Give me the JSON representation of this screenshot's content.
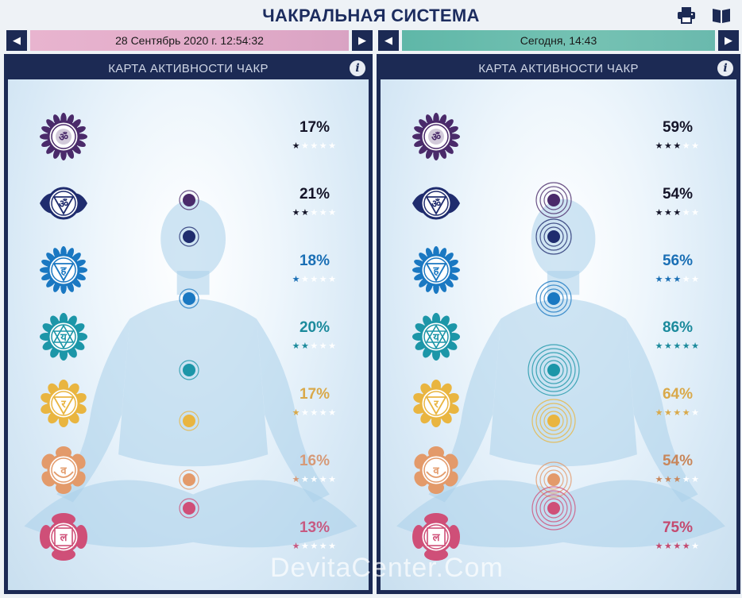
{
  "app": {
    "title": "ЧАКРАЛЬНАЯ СИСТЕМА",
    "toolbar": {
      "print_icon": "printer-icon",
      "manual_icon": "book-icon"
    }
  },
  "left": {
    "date": "28 Сентябрь 2020 г. 12:54:32",
    "panel_title": "КАРТА АКТИВНОСТИ ЧАКР",
    "chakras": [
      {
        "id": "sahasrara",
        "percent": "17%",
        "stars": 1,
        "color": "#4a2a6a",
        "text_color": "#141428"
      },
      {
        "id": "ajna",
        "percent": "21%",
        "stars": 2,
        "color": "#1f2c6e",
        "text_color": "#141428"
      },
      {
        "id": "vishuddha",
        "percent": "18%",
        "stars": 1,
        "color": "#1a78c2",
        "text_color": "#1a6fb5"
      },
      {
        "id": "anahata",
        "percent": "20%",
        "stars": 2,
        "color": "#1c96a8",
        "text_color": "#1b8a9c"
      },
      {
        "id": "manipura",
        "percent": "17%",
        "stars": 1,
        "color": "#e9b540",
        "text_color": "#d9a94a"
      },
      {
        "id": "svadhisthana",
        "percent": "16%",
        "stars": 1,
        "color": "#e39a6a",
        "text_color": "#d69a78"
      },
      {
        "id": "muladhara",
        "percent": "13%",
        "stars": 1,
        "color": "#cf4f78",
        "text_color": "#c75a82"
      }
    ]
  },
  "right": {
    "date": "Сегодня, 14:43",
    "panel_title": "КАРТА АКТИВНОСТИ ЧАКР",
    "chakras": [
      {
        "id": "sahasrara",
        "percent": "59%",
        "stars": 3,
        "color": "#4a2a6a",
        "text_color": "#141428"
      },
      {
        "id": "ajna",
        "percent": "54%",
        "stars": 3,
        "color": "#1f2c6e",
        "text_color": "#141428"
      },
      {
        "id": "vishuddha",
        "percent": "56%",
        "stars": 3,
        "color": "#1a78c2",
        "text_color": "#1a6fb5"
      },
      {
        "id": "anahata",
        "percent": "86%",
        "stars": 5,
        "color": "#1c96a8",
        "text_color": "#1b8a9c"
      },
      {
        "id": "manipura",
        "percent": "64%",
        "stars": 4,
        "color": "#e9b540",
        "text_color": "#d9a94a"
      },
      {
        "id": "svadhisthana",
        "percent": "54%",
        "stars": 3,
        "color": "#e39a6a",
        "text_color": "#c8865a"
      },
      {
        "id": "muladhara",
        "percent": "75%",
        "stars": 4,
        "color": "#cf4f78",
        "text_color": "#c4496f"
      }
    ]
  },
  "watermark": "DevitaCenter.Com"
}
